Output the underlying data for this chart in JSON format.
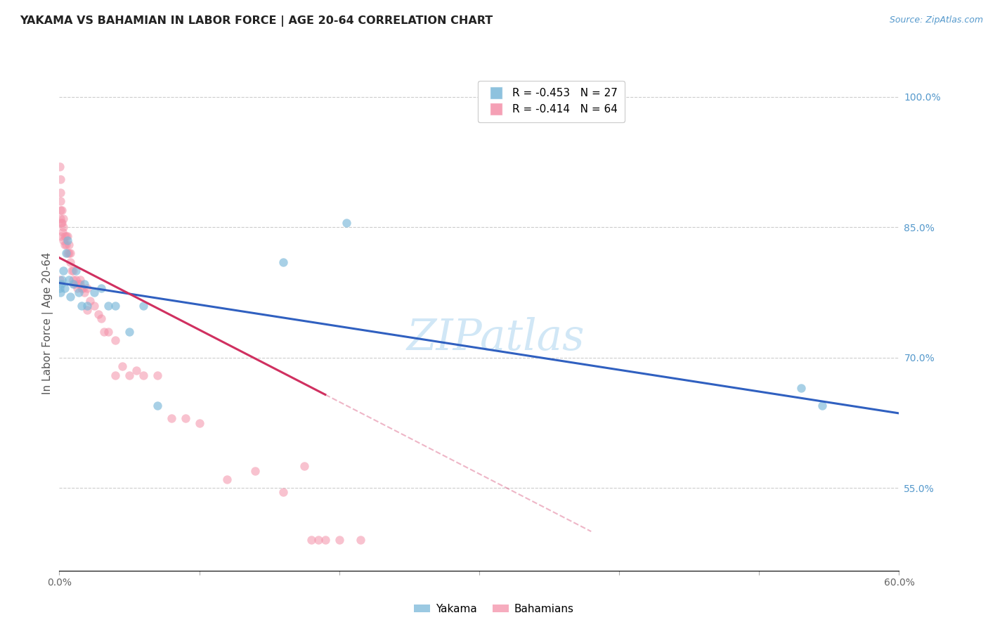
{
  "title": "YAKAMA VS BAHAMIAN IN LABOR FORCE | AGE 20-64 CORRELATION CHART",
  "source": "Source: ZipAtlas.com",
  "ylabel": "In Labor Force | Age 20-64",
  "xlim": [
    0.0,
    0.6
  ],
  "ylim": [
    0.455,
    1.025
  ],
  "ytick_positions": [
    1.0,
    0.85,
    0.7,
    0.55
  ],
  "ytick_labels": [
    "100.0%",
    "85.0%",
    "70.0%",
    "55.0%"
  ],
  "watermark": "ZIPatlas",
  "r_yakama": "R = -0.453",
  "n_yakama": "N = 27",
  "r_bahamian": "R = -0.414",
  "n_bahamian": "N = 64",
  "yakama_x": [
    0.0005,
    0.001,
    0.0015,
    0.002,
    0.003,
    0.004,
    0.005,
    0.006,
    0.007,
    0.008,
    0.01,
    0.012,
    0.014,
    0.016,
    0.018,
    0.02,
    0.025,
    0.03,
    0.035,
    0.04,
    0.05,
    0.06,
    0.07,
    0.16,
    0.205,
    0.53,
    0.545
  ],
  "yakama_y": [
    0.78,
    0.775,
    0.785,
    0.79,
    0.8,
    0.78,
    0.82,
    0.835,
    0.79,
    0.77,
    0.785,
    0.8,
    0.775,
    0.76,
    0.785,
    0.76,
    0.775,
    0.78,
    0.76,
    0.76,
    0.73,
    0.76,
    0.645,
    0.81,
    0.855,
    0.665,
    0.645
  ],
  "bahamian_x": [
    0.0002,
    0.0004,
    0.0006,
    0.0008,
    0.001,
    0.001,
    0.001,
    0.0012,
    0.0015,
    0.002,
    0.002,
    0.0025,
    0.003,
    0.003,
    0.003,
    0.004,
    0.004,
    0.005,
    0.005,
    0.006,
    0.006,
    0.007,
    0.007,
    0.008,
    0.008,
    0.009,
    0.01,
    0.01,
    0.011,
    0.012,
    0.013,
    0.014,
    0.015,
    0.015,
    0.016,
    0.017,
    0.018,
    0.02,
    0.02,
    0.022,
    0.025,
    0.028,
    0.03,
    0.032,
    0.035,
    0.04,
    0.04,
    0.045,
    0.05,
    0.055,
    0.06,
    0.07,
    0.08,
    0.09,
    0.1,
    0.12,
    0.14,
    0.16,
    0.175,
    0.18,
    0.185,
    0.19,
    0.2,
    0.215
  ],
  "bahamian_y": [
    0.79,
    0.92,
    0.905,
    0.89,
    0.87,
    0.88,
    0.86,
    0.855,
    0.84,
    0.87,
    0.855,
    0.845,
    0.85,
    0.835,
    0.86,
    0.84,
    0.83,
    0.84,
    0.83,
    0.84,
    0.82,
    0.83,
    0.82,
    0.82,
    0.81,
    0.8,
    0.8,
    0.79,
    0.785,
    0.79,
    0.78,
    0.785,
    0.79,
    0.785,
    0.78,
    0.78,
    0.775,
    0.755,
    0.78,
    0.765,
    0.76,
    0.75,
    0.745,
    0.73,
    0.73,
    0.72,
    0.68,
    0.69,
    0.68,
    0.685,
    0.68,
    0.68,
    0.63,
    0.63,
    0.625,
    0.56,
    0.57,
    0.545,
    0.575,
    0.49,
    0.49,
    0.49,
    0.49,
    0.49
  ],
  "yakama_color": "#7ab8d9",
  "bahamian_color": "#f490a8",
  "yakama_alpha": 0.65,
  "bahamian_alpha": 0.55,
  "trend_yakama_color": "#3060c0",
  "trend_bahamian_color": "#d03060",
  "background_color": "#ffffff",
  "grid_color": "#cccccc",
  "title_color": "#222222",
  "axis_label_color": "#555555",
  "right_axis_color": "#5599cc",
  "scatter_size": 80,
  "trend_yakama_x0": 0.0,
  "trend_yakama_y0": 0.786,
  "trend_yakama_x1": 0.6,
  "trend_yakama_y1": 0.636,
  "trend_bahamian_x0": 0.0,
  "trend_bahamian_y0": 0.815,
  "trend_bahamian_xsolid": 0.19,
  "trend_bahamian_xdash": 0.38,
  "trend_bahamian_y1": 0.5
}
